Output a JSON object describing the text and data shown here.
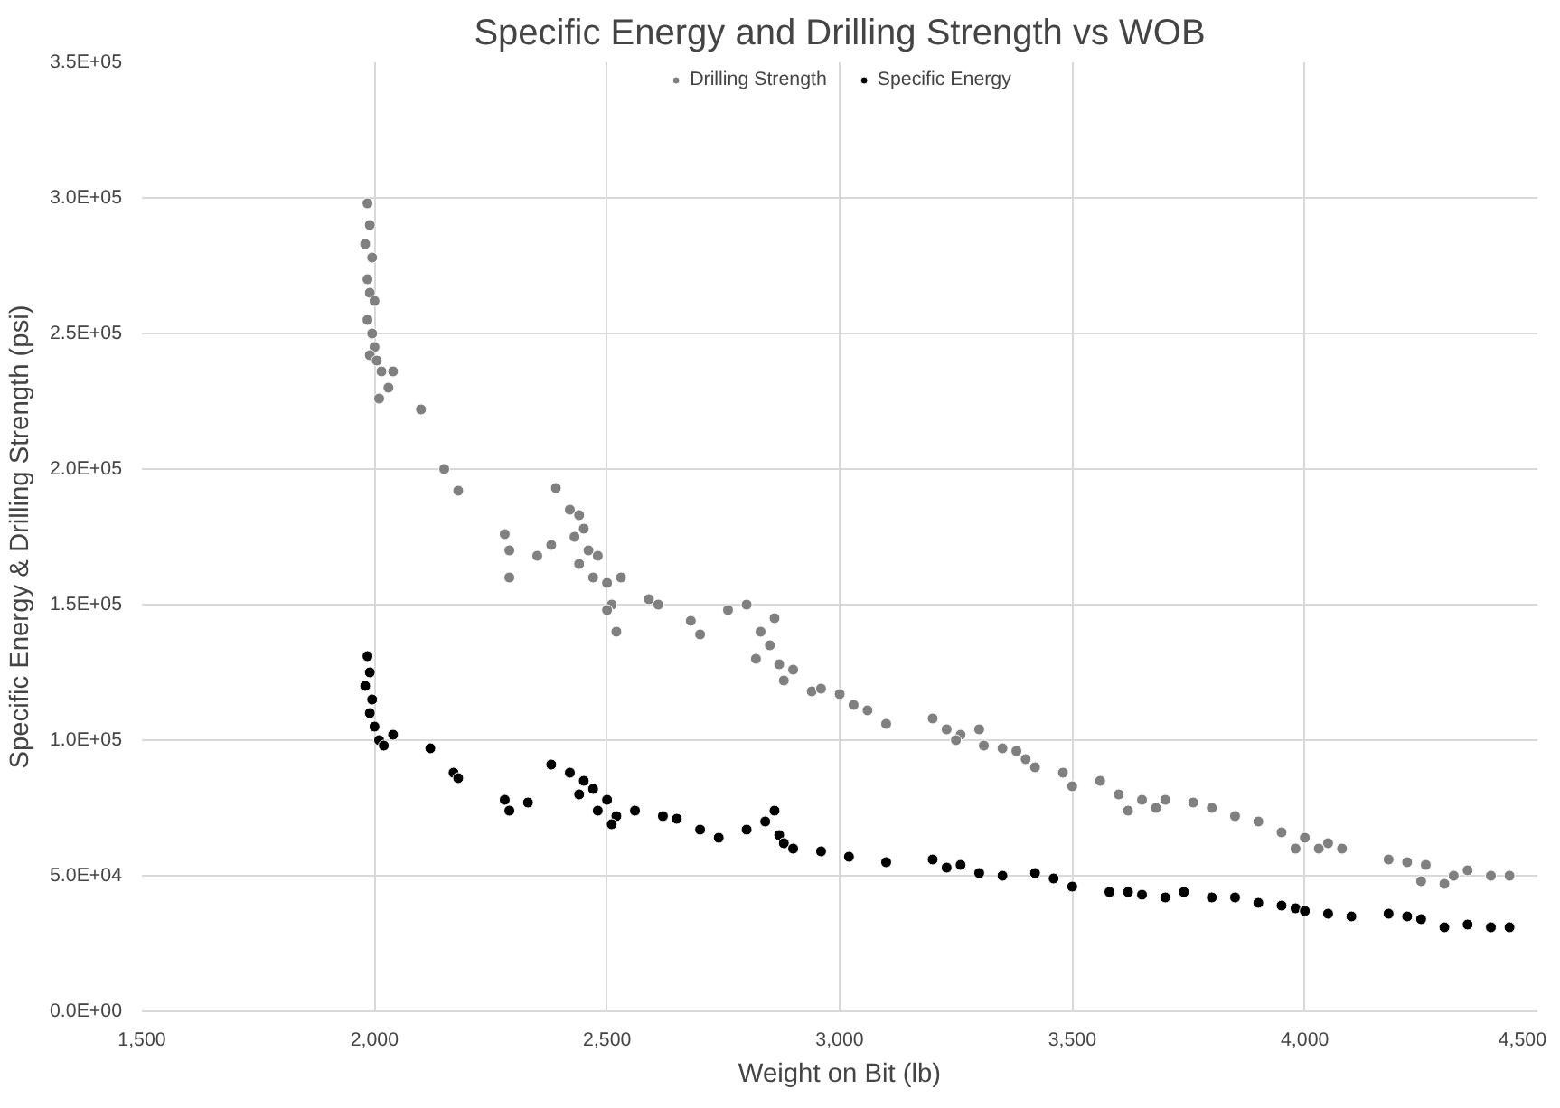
{
  "chart_data": {
    "type": "scatter",
    "title": "Specific Energy and Drilling Strength vs WOB",
    "xlabel": "Weight on Bit (lb)",
    "ylabel": "Specific Energy & Drilling Strength (psi)",
    "xlim": [
      1500,
      4500
    ],
    "ylim": [
      0,
      350000
    ],
    "xticks": [
      {
        "value": 1500,
        "label": "1,500"
      },
      {
        "value": 2000,
        "label": "2,000"
      },
      {
        "value": 2500,
        "label": "2,500"
      },
      {
        "value": 3000,
        "label": "3,000"
      },
      {
        "value": 3500,
        "label": "3,500"
      },
      {
        "value": 4000,
        "label": "4,000"
      },
      {
        "value": 4500,
        "label": "4,500"
      }
    ],
    "yticks": [
      {
        "value": 0,
        "label": "0.0E+00"
      },
      {
        "value": 50000,
        "label": "5.0E+04"
      },
      {
        "value": 100000,
        "label": "1.0E+05"
      },
      {
        "value": 150000,
        "label": "1.5E+05"
      },
      {
        "value": 200000,
        "label": "2.0E+05"
      },
      {
        "value": 250000,
        "label": "2.5E+05"
      },
      {
        "value": 300000,
        "label": "3.0E+05"
      },
      {
        "value": 350000,
        "label": "3.5E+05"
      }
    ],
    "grid": true,
    "legend": "top",
    "marker": "circle",
    "series": [
      {
        "name": "Drilling Strength",
        "color": "#808080",
        "x": [
          1985,
          1990,
          1980,
          1995,
          1985,
          1990,
          2000,
          1985,
          1995,
          2000,
          1990,
          2005,
          2015,
          2030,
          2040,
          2010,
          2100,
          2150,
          2180,
          2280,
          2290,
          2290,
          2350,
          2380,
          2390,
          2420,
          2440,
          2450,
          2430,
          2460,
          2440,
          2480,
          2470,
          2500,
          2510,
          2530,
          2500,
          2520,
          2590,
          2610,
          2680,
          2700,
          2760,
          2800,
          2830,
          2850,
          2820,
          2870,
          2880,
          2900,
          2860,
          2940,
          2960,
          3000,
          3030,
          3060,
          3100,
          3200,
          3230,
          3260,
          3300,
          3250,
          3310,
          3350,
          3380,
          3400,
          3420,
          3480,
          3500,
          3560,
          3600,
          3650,
          3700,
          3620,
          3680,
          3760,
          3800,
          3850,
          3900,
          3950,
          4000,
          4050,
          3980,
          4030,
          4080,
          4180,
          4220,
          4260,
          4250,
          4320,
          4350,
          4400,
          4440,
          4300
        ],
        "values": [
          298000,
          290000,
          283000,
          278000,
          270000,
          265000,
          262000,
          255000,
          250000,
          245000,
          242000,
          240000,
          236000,
          230000,
          236000,
          226000,
          222000,
          200000,
          192000,
          176000,
          170000,
          160000,
          168000,
          172000,
          193000,
          185000,
          183000,
          178000,
          175000,
          170000,
          165000,
          168000,
          160000,
          158000,
          150000,
          160000,
          148000,
          140000,
          152000,
          150000,
          144000,
          139000,
          148000,
          150000,
          140000,
          135000,
          130000,
          128000,
          122000,
          126000,
          145000,
          118000,
          119000,
          117000,
          113000,
          111000,
          106000,
          108000,
          104000,
          102000,
          104000,
          100000,
          98000,
          97000,
          96000,
          93000,
          90000,
          88000,
          83000,
          85000,
          80000,
          78000,
          78000,
          74000,
          75000,
          77000,
          75000,
          72000,
          70000,
          66000,
          64000,
          62000,
          60000,
          60000,
          60000,
          56000,
          55000,
          54000,
          48000,
          50000,
          52000,
          50000,
          50000,
          47000
        ]
      },
      {
        "name": "Specific Energy",
        "color": "#000000",
        "x": [
          1985,
          1990,
          1980,
          1995,
          1990,
          2000,
          2010,
          2020,
          2040,
          2120,
          2170,
          2180,
          2280,
          2290,
          2330,
          2380,
          2420,
          2450,
          2440,
          2470,
          2500,
          2480,
          2520,
          2510,
          2560,
          2620,
          2650,
          2700,
          2740,
          2800,
          2840,
          2860,
          2870,
          2880,
          2900,
          2960,
          3020,
          3100,
          3200,
          3230,
          3260,
          3300,
          3350,
          3420,
          3460,
          3500,
          3580,
          3620,
          3650,
          3700,
          3740,
          3800,
          3850,
          3900,
          3950,
          3980,
          4000,
          4050,
          4100,
          4180,
          4220,
          4250,
          4300,
          4350,
          4400,
          4440
        ],
        "values": [
          131000,
          125000,
          120000,
          115000,
          110000,
          105000,
          100000,
          98000,
          102000,
          97000,
          88000,
          86000,
          78000,
          74000,
          77000,
          91000,
          88000,
          85000,
          80000,
          82000,
          78000,
          74000,
          72000,
          69000,
          74000,
          72000,
          71000,
          67000,
          64000,
          67000,
          70000,
          74000,
          65000,
          62000,
          60000,
          59000,
          57000,
          55000,
          56000,
          53000,
          54000,
          51000,
          50000,
          51000,
          49000,
          46000,
          44000,
          44000,
          43000,
          42000,
          44000,
          42000,
          42000,
          40000,
          39000,
          38000,
          37000,
          36000,
          35000,
          36000,
          35000,
          34000,
          31000,
          32000,
          31000,
          31000
        ]
      }
    ]
  }
}
